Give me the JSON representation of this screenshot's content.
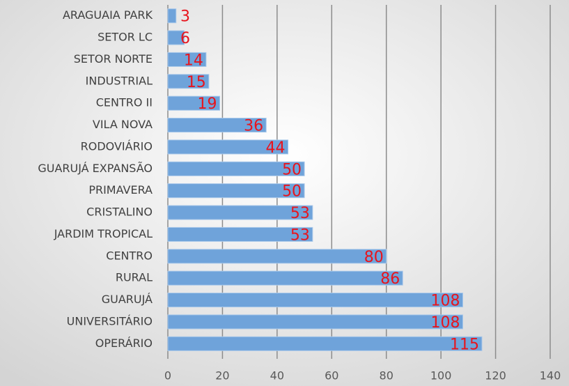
{
  "chart_data": {
    "type": "barh",
    "categories": [
      "ARAGUAIA PARK",
      "SETOR LC",
      "SETOR NORTE",
      "INDUSTRIAL",
      "CENTRO II",
      "VILA NOVA",
      "RODOVIÁRIO",
      "GUARUJÁ EXPANSÃO",
      "PRIMAVERA",
      "CRISTALINO",
      "JARDIM TROPICAL",
      "CENTRO",
      "RURAL",
      "GUARUJÁ",
      "UNIVERSITÁRIO",
      "OPERÁRIO"
    ],
    "values": [
      3,
      6,
      14,
      15,
      19,
      36,
      44,
      50,
      50,
      53,
      53,
      80,
      86,
      108,
      108,
      115
    ],
    "color": "#6fa3da",
    "label_color": "#e8141c",
    "xlim": [
      0,
      140
    ],
    "xticks": [
      0,
      20,
      40,
      60,
      80,
      100,
      120,
      140
    ],
    "grid": true
  }
}
